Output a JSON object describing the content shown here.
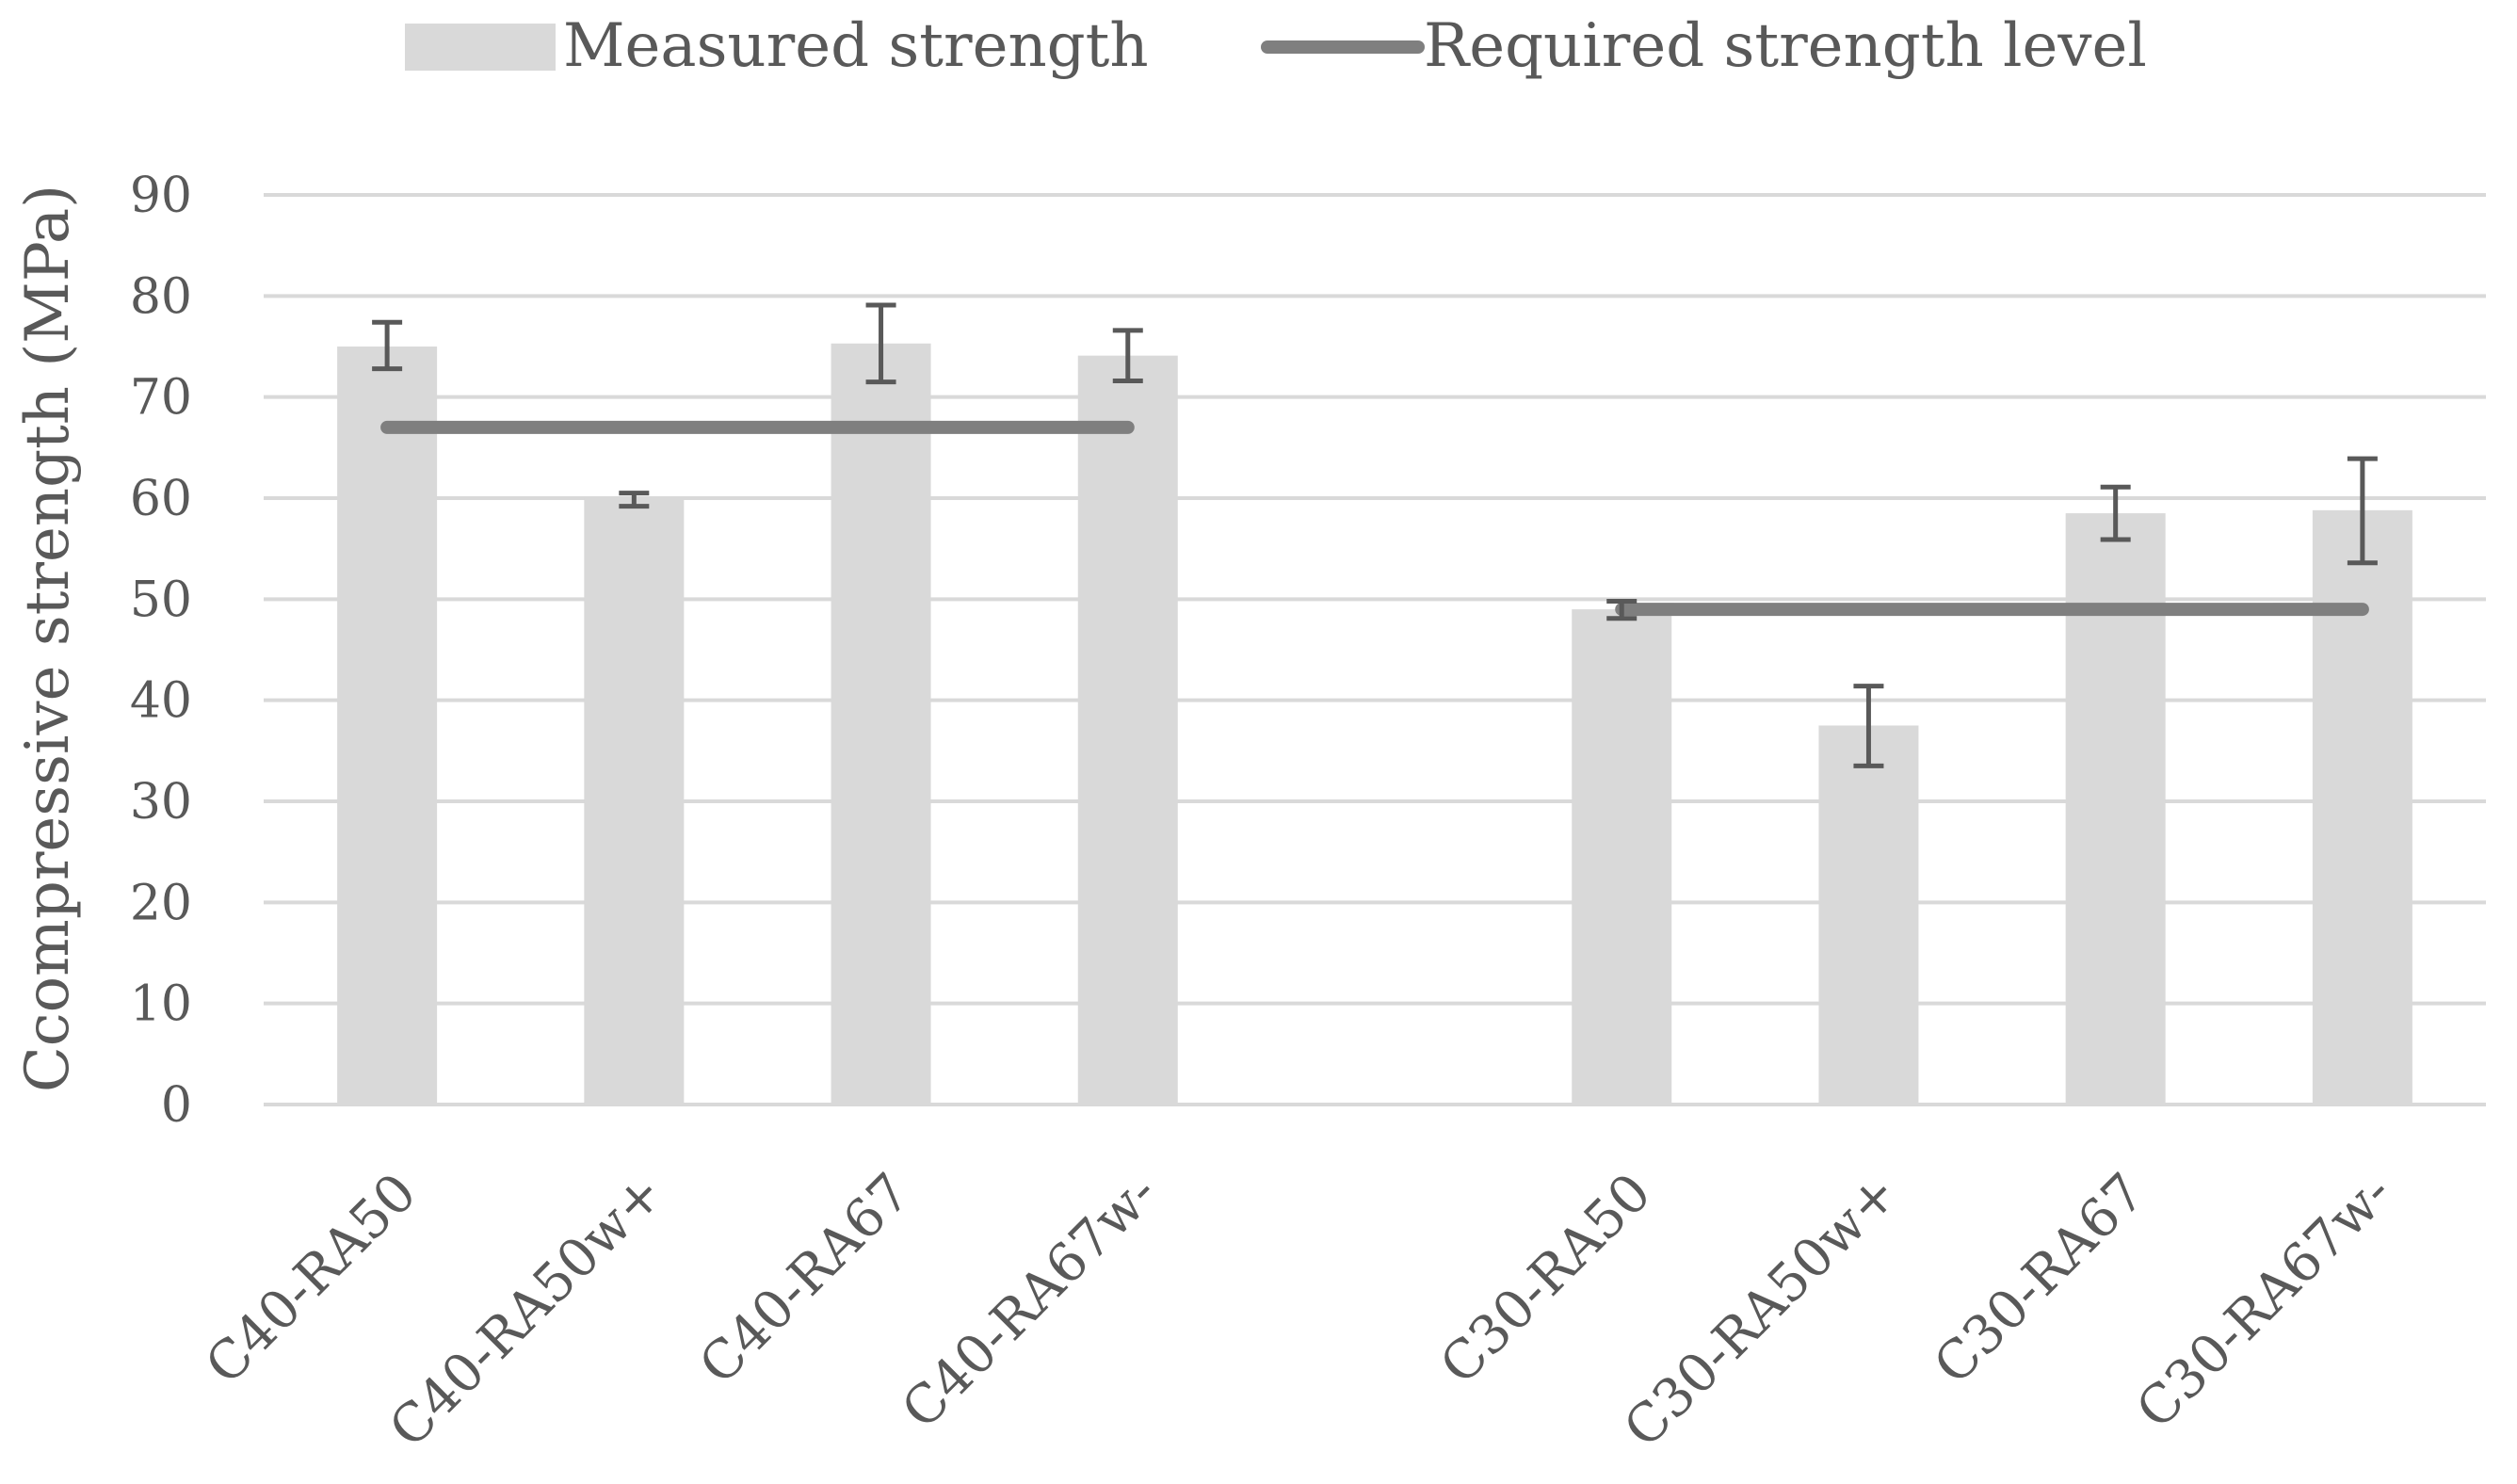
{
  "chart_data": {
    "type": "bar",
    "title": "",
    "xlabel": "",
    "ylabel": "Ccompressive strength (MPa)",
    "ylim": [
      0,
      90
    ],
    "yticks": [
      0,
      10,
      20,
      30,
      40,
      50,
      60,
      70,
      80,
      90
    ],
    "grid": true,
    "legend_position": "top",
    "categories": [
      "C40-RA50",
      "C40-RA50w+",
      "C40-RA67",
      "C40-RA67w-",
      "",
      "C30-RA50",
      "C30-RA50w+",
      "C30-RA67",
      "C30-RA67w-"
    ],
    "series": [
      {
        "name": "Measured strength",
        "kind": "bar",
        "color": "#d9d9d9",
        "values": [
          75,
          60,
          75.3,
          74.1,
          null,
          49,
          37.5,
          58.5,
          58.8
        ],
        "error_low": [
          72.8,
          59.2,
          71.5,
          71.6,
          null,
          48.1,
          33.5,
          55.9,
          53.6
        ],
        "error_high": [
          77.4,
          60.5,
          79.1,
          76.6,
          null,
          49.8,
          41.4,
          61.1,
          63.9
        ]
      },
      {
        "name": "Required strength level",
        "kind": "line",
        "color": "#7f7f7f",
        "values": [
          67,
          67,
          67,
          67,
          null,
          49,
          49,
          49,
          49
        ]
      }
    ],
    "error_bar_color": "#595959"
  }
}
